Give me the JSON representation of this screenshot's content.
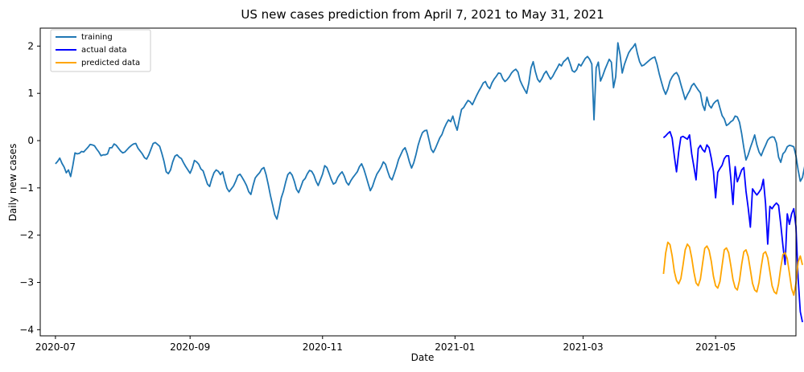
{
  "chart_data": {
    "type": "line",
    "title": "US new cases prediction from April 7, 2021 to May 31, 2021",
    "xlabel": "Date",
    "ylabel": "Daily new cases",
    "x_date_range": [
      "2020-06-24",
      "2021-06-07"
    ],
    "ylim": [
      -4.13,
      2.38
    ],
    "x_tick_labels": [
      "2020-07",
      "2020-09",
      "2020-11",
      "2021-01",
      "2021-03",
      "2021-05"
    ],
    "x_tick_dates": [
      "2020-07-01",
      "2020-09-01",
      "2020-11-01",
      "2021-01-01",
      "2021-03-01",
      "2021-05-01"
    ],
    "y_ticks": [
      2,
      1,
      0,
      -1,
      -2,
      -3,
      -4
    ],
    "y_tick_labels": [
      "2",
      "1",
      "0",
      "−1",
      "−2",
      "−3",
      "−4"
    ],
    "grid": false,
    "legend_position": "top-left",
    "series": [
      {
        "name": "training",
        "color": "#1f77b4",
        "start_date": "2020-07-01",
        "step_days": 1,
        "values": [
          -0.49,
          -0.44,
          -0.37,
          -0.48,
          -0.56,
          -0.68,
          -0.62,
          -0.76,
          -0.53,
          -0.26,
          -0.28,
          -0.27,
          -0.23,
          -0.24,
          -0.19,
          -0.14,
          -0.08,
          -0.09,
          -0.11,
          -0.18,
          -0.24,
          -0.32,
          -0.3,
          -0.3,
          -0.28,
          -0.15,
          -0.15,
          -0.07,
          -0.1,
          -0.16,
          -0.22,
          -0.26,
          -0.24,
          -0.19,
          -0.14,
          -0.1,
          -0.07,
          -0.06,
          -0.16,
          -0.22,
          -0.28,
          -0.36,
          -0.39,
          -0.3,
          -0.18,
          -0.06,
          -0.04,
          -0.08,
          -0.12,
          -0.27,
          -0.44,
          -0.66,
          -0.7,
          -0.62,
          -0.45,
          -0.33,
          -0.3,
          -0.35,
          -0.38,
          -0.47,
          -0.55,
          -0.62,
          -0.69,
          -0.58,
          -0.42,
          -0.45,
          -0.5,
          -0.6,
          -0.64,
          -0.78,
          -0.92,
          -0.97,
          -0.81,
          -0.68,
          -0.62,
          -0.65,
          -0.72,
          -0.66,
          -0.85,
          -1.01,
          -1.08,
          -1.02,
          -0.96,
          -0.86,
          -0.74,
          -0.71,
          -0.78,
          -0.86,
          -0.95,
          -1.08,
          -1.14,
          -0.95,
          -0.79,
          -0.73,
          -0.68,
          -0.6,
          -0.57,
          -0.72,
          -0.93,
          -1.16,
          -1.36,
          -1.57,
          -1.66,
          -1.45,
          -1.21,
          -1.07,
          -0.88,
          -0.72,
          -0.67,
          -0.73,
          -0.86,
          -1.03,
          -1.1,
          -0.98,
          -0.85,
          -0.8,
          -0.7,
          -0.63,
          -0.65,
          -0.73,
          -0.86,
          -0.95,
          -0.83,
          -0.71,
          -0.53,
          -0.57,
          -0.69,
          -0.82,
          -0.92,
          -0.89,
          -0.78,
          -0.71,
          -0.66,
          -0.75,
          -0.88,
          -0.94,
          -0.85,
          -0.78,
          -0.72,
          -0.66,
          -0.55,
          -0.49,
          -0.6,
          -0.75,
          -0.91,
          -1.06,
          -0.97,
          -0.83,
          -0.71,
          -0.64,
          -0.56,
          -0.45,
          -0.5,
          -0.65,
          -0.78,
          -0.83,
          -0.7,
          -0.56,
          -0.4,
          -0.3,
          -0.2,
          -0.15,
          -0.28,
          -0.45,
          -0.58,
          -0.47,
          -0.3,
          -0.1,
          0.05,
          0.17,
          0.21,
          0.22,
          0.02,
          -0.18,
          -0.25,
          -0.16,
          -0.05,
          0.06,
          0.13,
          0.26,
          0.36,
          0.44,
          0.4,
          0.52,
          0.35,
          0.22,
          0.45,
          0.66,
          0.7,
          0.78,
          0.85,
          0.82,
          0.76,
          0.86,
          0.96,
          1.05,
          1.13,
          1.22,
          1.25,
          1.15,
          1.1,
          1.22,
          1.3,
          1.36,
          1.43,
          1.42,
          1.31,
          1.25,
          1.29,
          1.35,
          1.43,
          1.48,
          1.51,
          1.45,
          1.27,
          1.17,
          1.08,
          1.0,
          1.22,
          1.54,
          1.67,
          1.46,
          1.3,
          1.24,
          1.31,
          1.41,
          1.47,
          1.38,
          1.3,
          1.36,
          1.45,
          1.53,
          1.62,
          1.58,
          1.67,
          1.71,
          1.76,
          1.63,
          1.48,
          1.45,
          1.5,
          1.62,
          1.58,
          1.66,
          1.74,
          1.78,
          1.72,
          1.62,
          0.44,
          1.54,
          1.66,
          1.26,
          1.37,
          1.5,
          1.61,
          1.72,
          1.66,
          1.12,
          1.35,
          2.07,
          1.82,
          1.43,
          1.61,
          1.74,
          1.86,
          1.93,
          1.98,
          2.05,
          1.84,
          1.67,
          1.58,
          1.6,
          1.64,
          1.68,
          1.72,
          1.75,
          1.77,
          1.62,
          1.42,
          1.25,
          1.09,
          0.98,
          1.09,
          1.26,
          1.35,
          1.41,
          1.44,
          1.36,
          1.19,
          1.03,
          0.87,
          0.97,
          1.05,
          1.16,
          1.21,
          1.14,
          1.07,
          1.01,
          0.76,
          0.64,
          0.92,
          0.75,
          0.69,
          0.78,
          0.83,
          0.86,
          0.69,
          0.53,
          0.46,
          0.32,
          0.35,
          0.4,
          0.43,
          0.52,
          0.5,
          0.39,
          0.15,
          -0.15,
          -0.41,
          -0.3,
          -0.15,
          -0.02,
          0.12,
          -0.09,
          -0.24,
          -0.32,
          -0.2,
          -0.1,
          0.01,
          0.06,
          0.08,
          0.07,
          -0.05,
          -0.35,
          -0.46,
          -0.28,
          -0.23,
          -0.13,
          -0.1,
          -0.11,
          -0.13,
          -0.32,
          -0.62,
          -0.86,
          -0.78,
          -0.55,
          -0.31,
          -0.28,
          -0.22,
          -0.14,
          -0.22,
          -0.5,
          -0.8,
          -0.58,
          -0.36,
          -0.33,
          -0.29,
          -0.23,
          -0.26,
          -0.38,
          -0.58,
          -0.85,
          -1.14,
          -0.72,
          -0.17,
          0.26,
          -0.1,
          0.02,
          -0.22,
          -0.39,
          -0.76,
          -0.43,
          -0.22,
          -0.05,
          0.13,
          -0.27,
          -0.72,
          -0.82,
          -1.07,
          0.09,
          -0.04,
          -0.26
        ]
      },
      {
        "name": "actual data",
        "color": "#0000ff",
        "start_date": "2021-04-07",
        "step_days": 1,
        "values": [
          0.06,
          0.1,
          0.15,
          0.19,
          0.05,
          -0.33,
          -0.66,
          -0.24,
          0.07,
          0.09,
          0.06,
          0.03,
          0.12,
          -0.28,
          -0.55,
          -0.83,
          -0.17,
          -0.1,
          -0.19,
          -0.24,
          -0.09,
          -0.15,
          -0.37,
          -0.65,
          -1.21,
          -0.67,
          -0.59,
          -0.52,
          -0.38,
          -0.32,
          -0.32,
          -0.8,
          -1.35,
          -0.55,
          -0.87,
          -0.75,
          -0.62,
          -0.57,
          -1.07,
          -1.42,
          -1.83,
          -1.02,
          -1.09,
          -1.15,
          -1.09,
          -1.02,
          -0.82,
          -1.33,
          -2.19,
          -1.39,
          -1.44,
          -1.37,
          -1.32,
          -1.37,
          -1.77,
          -2.22,
          -2.62,
          -1.55,
          -1.77,
          -1.55,
          -1.44,
          -1.82,
          -2.91,
          -3.62,
          -3.84
        ]
      },
      {
        "name": "predicted data",
        "color": "#ffa500",
        "start_date": "2021-04-07",
        "step_days": 1,
        "values": [
          -2.82,
          -2.38,
          -2.15,
          -2.2,
          -2.44,
          -2.77,
          -2.96,
          -3.03,
          -2.92,
          -2.63,
          -2.31,
          -2.19,
          -2.25,
          -2.48,
          -2.78,
          -3.01,
          -3.07,
          -2.93,
          -2.6,
          -2.28,
          -2.23,
          -2.32,
          -2.55,
          -2.87,
          -3.07,
          -3.12,
          -2.98,
          -2.64,
          -2.31,
          -2.27,
          -2.37,
          -2.64,
          -2.94,
          -3.11,
          -3.16,
          -2.96,
          -2.62,
          -2.35,
          -2.31,
          -2.45,
          -2.73,
          -3.02,
          -3.16,
          -3.2,
          -3.0,
          -2.67,
          -2.39,
          -2.35,
          -2.48,
          -2.77,
          -3.07,
          -3.2,
          -3.24,
          -3.03,
          -2.69,
          -2.41,
          -2.37,
          -2.5,
          -2.81,
          -3.13,
          -3.27,
          -3.02,
          -2.57,
          -2.44,
          -2.63
        ]
      }
    ]
  }
}
